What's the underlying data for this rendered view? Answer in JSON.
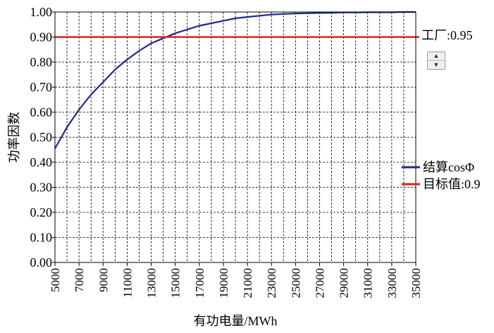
{
  "chart_data": {
    "type": "line",
    "xlabel": "有功电量/MWh",
    "ylabel": "功率因数",
    "xlim": [
      5000,
      35000
    ],
    "ylim": [
      0.0,
      1.0
    ],
    "x_ticks": [
      5000,
      7000,
      9000,
      11000,
      13000,
      15000,
      17000,
      19000,
      21000,
      23000,
      25000,
      27000,
      29000,
      31000,
      33000,
      35000
    ],
    "y_ticks": [
      "0.00",
      "0.10",
      "0.20",
      "0.30",
      "0.40",
      "0.50",
      "0.60",
      "0.70",
      "0.80",
      "0.90",
      "1.00"
    ],
    "grid": {
      "vertical_every": 1000,
      "horizontal_every": 0.1,
      "style": "dashed"
    },
    "series": [
      {
        "name": "结算cosΦ",
        "color": "#1f2a8c",
        "x": [
          5000,
          6000,
          7000,
          8000,
          9000,
          10000,
          11000,
          12000,
          13000,
          14000,
          15000,
          16000,
          17000,
          18000,
          19000,
          20000,
          21000,
          22000,
          23000,
          24000,
          25000,
          26000,
          27000,
          28000,
          29000,
          30000,
          31000,
          32000,
          33000,
          34000,
          35000
        ],
        "y": [
          0.455,
          0.54,
          0.61,
          0.67,
          0.72,
          0.77,
          0.81,
          0.845,
          0.875,
          0.895,
          0.915,
          0.93,
          0.945,
          0.955,
          0.965,
          0.975,
          0.98,
          0.985,
          0.99,
          0.992,
          0.994,
          0.995,
          0.996,
          0.997,
          0.998,
          0.998,
          0.999,
          0.999,
          0.999,
          1.0,
          1.0
        ]
      },
      {
        "name": "目标值:0.9",
        "color": "#e02020",
        "x": [
          5000,
          35000
        ],
        "y": [
          0.9,
          0.9
        ]
      }
    ],
    "legend_position": "right"
  },
  "factory_label": "工厂:0.95",
  "spinner": {
    "up_glyph": "▲",
    "down_glyph": "▼"
  }
}
